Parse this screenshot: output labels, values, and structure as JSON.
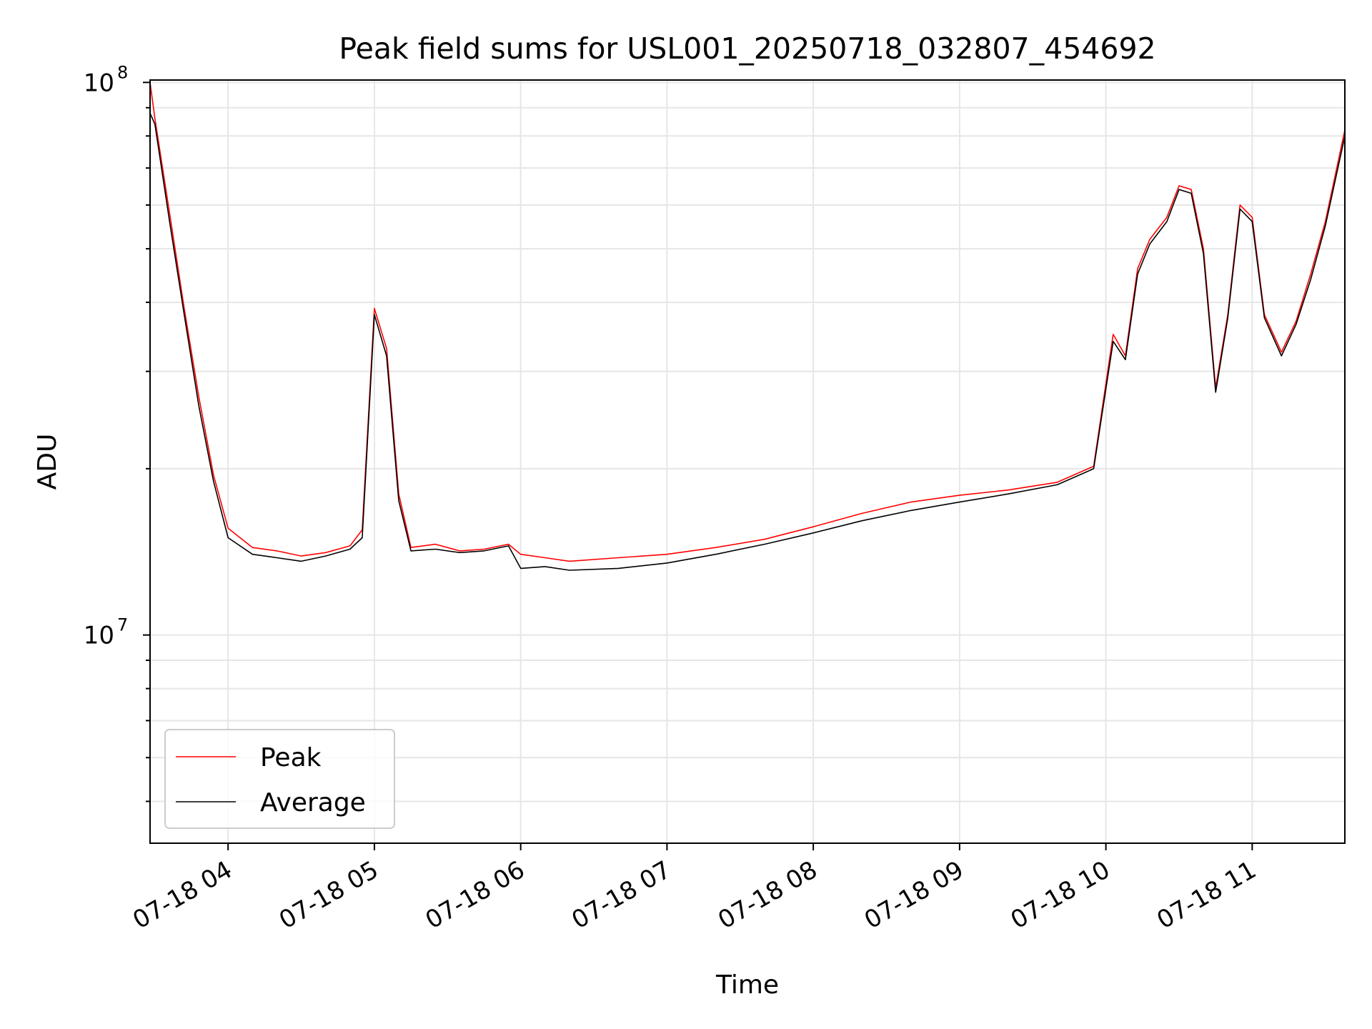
{
  "chart_data": {
    "type": "line",
    "title": "Peak field sums for USL001_20250718_032807_454692",
    "xlabel": "Time",
    "ylabel": "ADU",
    "x_range": [
      "2025-07-18 03:28",
      "2025-07-18 11:38"
    ],
    "ylim": [
      4200000,
      101000000
    ],
    "yscale": "log",
    "grid": true,
    "legend_position": "lower-left",
    "xtick_labels": [
      "07-18 04",
      "07-18 05",
      "07-18 06",
      "07-18 07",
      "07-18 08",
      "07-18 09",
      "07-18 10",
      "07-18 11"
    ],
    "xtick_times": [
      "2025-07-18 04:00",
      "2025-07-18 05:00",
      "2025-07-18 06:00",
      "2025-07-18 07:00",
      "2025-07-18 08:00",
      "2025-07-18 09:00",
      "2025-07-18 10:00",
      "2025-07-18 11:00"
    ],
    "ytick_labels": [
      {
        "base": "10",
        "exp": "7"
      },
      {
        "base": "10",
        "exp": "8"
      }
    ],
    "ytick_values": [
      10000000,
      100000000
    ],
    "series": [
      {
        "name": "Peak",
        "color": "#ff0000",
        "x": [
          "2025-07-18 03:28",
          "2025-07-18 03:30",
          "2025-07-18 03:36",
          "2025-07-18 03:42",
          "2025-07-18 03:48",
          "2025-07-18 03:54",
          "2025-07-18 04:00",
          "2025-07-18 04:10",
          "2025-07-18 04:20",
          "2025-07-18 04:30",
          "2025-07-18 04:40",
          "2025-07-18 04:50",
          "2025-07-18 04:55",
          "2025-07-18 05:00",
          "2025-07-18 05:05",
          "2025-07-18 05:10",
          "2025-07-18 05:15",
          "2025-07-18 05:25",
          "2025-07-18 05:35",
          "2025-07-18 05:45",
          "2025-07-18 05:55",
          "2025-07-18 06:00",
          "2025-07-18 06:10",
          "2025-07-18 06:20",
          "2025-07-18 06:40",
          "2025-07-18 07:00",
          "2025-07-18 07:20",
          "2025-07-18 07:40",
          "2025-07-18 08:00",
          "2025-07-18 08:20",
          "2025-07-18 08:40",
          "2025-07-18 09:00",
          "2025-07-18 09:20",
          "2025-07-18 09:40",
          "2025-07-18 09:55",
          "2025-07-18 10:03",
          "2025-07-18 10:08",
          "2025-07-18 10:13",
          "2025-07-18 10:18",
          "2025-07-18 10:25",
          "2025-07-18 10:30",
          "2025-07-18 10:35",
          "2025-07-18 10:40",
          "2025-07-18 10:45",
          "2025-07-18 10:50",
          "2025-07-18 10:55",
          "2025-07-18 11:00",
          "2025-07-18 11:05",
          "2025-07-18 11:12",
          "2025-07-18 11:18",
          "2025-07-18 11:24",
          "2025-07-18 11:30",
          "2025-07-18 11:38"
        ],
        "y": [
          100000000,
          86000000,
          58000000,
          39000000,
          27000000,
          19500000,
          15600000,
          14400000,
          14200000,
          13900000,
          14100000,
          14500000,
          15500000,
          39000000,
          33000000,
          18000000,
          14400000,
          14600000,
          14200000,
          14300000,
          14600000,
          14000000,
          13800000,
          13600000,
          13800000,
          14000000,
          14400000,
          14900000,
          15700000,
          16600000,
          17400000,
          17900000,
          18300000,
          18900000,
          20200000,
          35000000,
          32000000,
          46000000,
          52000000,
          57000000,
          65000000,
          64000000,
          50000000,
          28000000,
          38000000,
          60000000,
          57000000,
          38000000,
          32500000,
          37000000,
          45000000,
          56000000,
          82000000
        ]
      },
      {
        "name": "Average",
        "color": "#000000",
        "x": [
          "2025-07-18 03:28",
          "2025-07-18 03:30",
          "2025-07-18 03:36",
          "2025-07-18 03:42",
          "2025-07-18 03:48",
          "2025-07-18 03:54",
          "2025-07-18 04:00",
          "2025-07-18 04:10",
          "2025-07-18 04:20",
          "2025-07-18 04:30",
          "2025-07-18 04:40",
          "2025-07-18 04:50",
          "2025-07-18 04:55",
          "2025-07-18 05:00",
          "2025-07-18 05:05",
          "2025-07-18 05:10",
          "2025-07-18 05:15",
          "2025-07-18 05:25",
          "2025-07-18 05:35",
          "2025-07-18 05:45",
          "2025-07-18 05:55",
          "2025-07-18 06:00",
          "2025-07-18 06:10",
          "2025-07-18 06:20",
          "2025-07-18 06:40",
          "2025-07-18 07:00",
          "2025-07-18 07:20",
          "2025-07-18 07:40",
          "2025-07-18 08:00",
          "2025-07-18 08:20",
          "2025-07-18 08:40",
          "2025-07-18 09:00",
          "2025-07-18 09:20",
          "2025-07-18 09:40",
          "2025-07-18 09:55",
          "2025-07-18 10:03",
          "2025-07-18 10:08",
          "2025-07-18 10:13",
          "2025-07-18 10:18",
          "2025-07-18 10:25",
          "2025-07-18 10:30",
          "2025-07-18 10:35",
          "2025-07-18 10:40",
          "2025-07-18 10:45",
          "2025-07-18 10:50",
          "2025-07-18 10:55",
          "2025-07-18 11:00",
          "2025-07-18 11:05",
          "2025-07-18 11:12",
          "2025-07-18 11:18",
          "2025-07-18 11:24",
          "2025-07-18 11:30",
          "2025-07-18 11:38"
        ],
        "y": [
          88000000,
          84000000,
          56000000,
          38000000,
          26000000,
          19000000,
          15000000,
          14000000,
          13800000,
          13600000,
          13900000,
          14300000,
          15000000,
          38000000,
          32000000,
          17500000,
          14200000,
          14300000,
          14100000,
          14200000,
          14500000,
          13200000,
          13300000,
          13100000,
          13200000,
          13500000,
          14000000,
          14600000,
          15300000,
          16100000,
          16800000,
          17400000,
          18000000,
          18700000,
          20000000,
          34000000,
          31500000,
          45000000,
          51000000,
          56000000,
          64000000,
          63000000,
          49000000,
          27500000,
          37500000,
          59000000,
          56000000,
          37500000,
          32000000,
          36500000,
          44000000,
          55000000,
          80000000
        ]
      }
    ]
  }
}
